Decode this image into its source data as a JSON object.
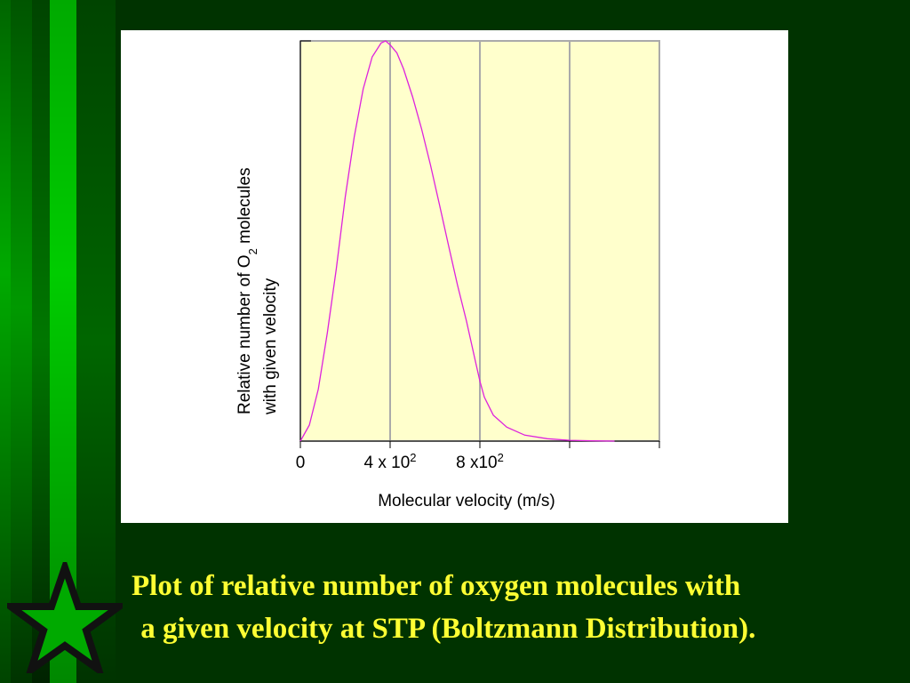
{
  "slide": {
    "background_color": "#003300",
    "caption_lines": [
      "Plot of relative number of oxygen molecules with",
      " a given velocity at STP (Boltzmann Distribution)."
    ],
    "caption_color": "#ffff33",
    "decoration_icon": "star-icon"
  },
  "chart_data": {
    "type": "line",
    "x_ticks": [
      {
        "value": 0,
        "base": "0",
        "exp": ""
      },
      {
        "value": 400,
        "base": "4 x 10",
        "exp": "2"
      },
      {
        "value": 800,
        "base": "8 x10",
        "exp": "2"
      }
    ],
    "xlabel": "Molecular velocity (m/s)",
    "ylabel_parts": {
      "line1_prefix": "Relative number of O",
      "line1_sub": "2",
      "line1_suffix": " molecules",
      "line2": "with given velocity"
    },
    "xlim": [
      0,
      1600
    ],
    "ylim": [
      0,
      1
    ],
    "grid_x": [
      400,
      800,
      1200
    ],
    "grid": true,
    "plot_background": "#ffffcc",
    "series": [
      {
        "color": "#dd22dd",
        "x": [
          0,
          40,
          80,
          120,
          160,
          200,
          240,
          280,
          320,
          360,
          380,
          400,
          430,
          460,
          500,
          540,
          580,
          620,
          660,
          700,
          740,
          780,
          800,
          820,
          860,
          920,
          1000,
          1100,
          1200,
          1300,
          1400
        ],
        "y": [
          0,
          0.04,
          0.13,
          0.27,
          0.43,
          0.61,
          0.76,
          0.88,
          0.96,
          0.995,
          1.0,
          0.99,
          0.97,
          0.93,
          0.86,
          0.78,
          0.69,
          0.59,
          0.49,
          0.39,
          0.3,
          0.2,
          0.15,
          0.11,
          0.065,
          0.035,
          0.015,
          0.006,
          0.002,
          0.001,
          0
        ]
      }
    ]
  }
}
